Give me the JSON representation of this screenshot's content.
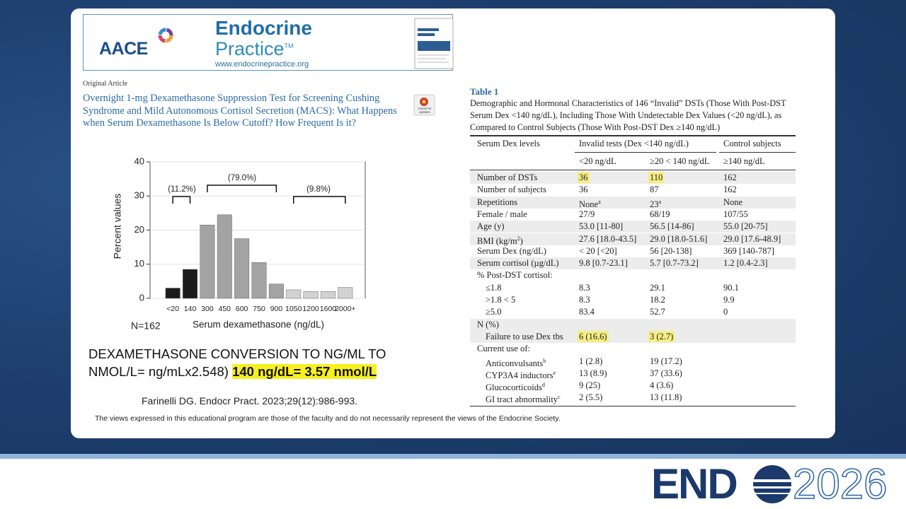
{
  "header": {
    "brand": "AACE",
    "journal_line1": "Endocrine",
    "journal_line2": "Practice",
    "trademark": "TM",
    "url": "www.endocrinepractice.org"
  },
  "article": {
    "kind": "Original Article",
    "title": "Overnight 1-mg Dexamethasone Suppression Test for Screening Cushing Syndrome and Mild Autonomous Cortisol Secretion (MACS): What Happens when Serum Dexamethasone Is Below Cutoff? How Frequent Is it?",
    "badge": "Check for updates"
  },
  "chart_data": {
    "type": "bar",
    "categories": [
      "<20",
      "140",
      "300",
      "450",
      "600",
      "750",
      "900",
      "1050",
      "1200",
      "1600",
      "2000+"
    ],
    "values": [
      3,
      8.5,
      21.5,
      24.5,
      17.5,
      10.5,
      4.2,
      2.5,
      2,
      2,
      3.2
    ],
    "colors": [
      "#1c1c1c",
      "#1c1c1c",
      "#a3a3a3",
      "#a3a3a3",
      "#a3a3a3",
      "#a3a3a3",
      "#a3a3a3",
      "#d2d2d2",
      "#d2d2d2",
      "#d2d2d2",
      "#d2d2d2"
    ],
    "ylim": [
      0,
      40
    ],
    "yticks": [
      0,
      10,
      20,
      30,
      40
    ],
    "grid": true,
    "y_label": "Percent values",
    "x_label": "Serum dexamethasone (ng/dL)",
    "annotations": [
      "(11.2%)",
      "(79.0%)",
      "(9.8%)",
      "N=162"
    ]
  },
  "conversion": {
    "text": "DEXAMETHASONE CONVERSION TO NG/ML TO NMOL/L= ng/mLx2.548)",
    "highlight": "140 ng/dL= 3.57 nmol/L"
  },
  "citation": "Farinelli DG. Endocr Pract. 2023;29(12):986-993.",
  "disclaimer": "The views expressed in this educational program are those of the faculty and do not necessarily represent the views of the Endocrine Society.",
  "table": {
    "caption": "Table 1",
    "title": "Demographic and Hormonal Characteristics of 146 “Invalid” DSTs (Those With Post-DST Serum Dex <140 ng/dL), Including Those With Undetectable Dex Values (<20 ng/dL), as Compared to Control Subjects (Those With Post-DST Dex ≥140 ng/dL)",
    "header": [
      "Serum Dex levels",
      "Invalid tests (Dex <140 ng/dL)",
      "Control subjects"
    ],
    "subheader": [
      "<20 ng/dL",
      "≥20 < 140 ng/dL",
      "≥140 ng/dL"
    ],
    "rows": [
      {
        "cells": [
          "Number of DSTs",
          {
            "text": "36",
            "highlight": true
          },
          {
            "text": "110",
            "highlight": true
          },
          "162"
        ],
        "shaded": true
      },
      {
        "cells": [
          "Number of subjects",
          "36",
          "87",
          "162"
        ],
        "shaded": false
      },
      {
        "cells": [
          "Repetitions",
          {
            "text": "None",
            "sup": "a"
          },
          {
            "text": "23",
            "sup": "a"
          },
          "None"
        ],
        "shaded": true
      },
      {
        "cells": [
          "Female / male",
          "27/9",
          "68/19",
          "107/55"
        ],
        "shaded": false
      },
      {
        "cells": [
          "Age (y)",
          "53.0 [11-80]",
          "56.5 [14-86]",
          "55.0 [20-75]"
        ],
        "shaded": true
      },
      {
        "cells": [
          {
            "text": "BMI (kg/m",
            "sup": "2",
            "after": ")"
          },
          "27.6 [18.0-43.5]",
          "29.0 [18.0-51.6]",
          "29.0 [17.6-48.9]"
        ],
        "shaded": true
      },
      {
        "cells": [
          "Serum Dex (ng/dL)",
          "< 20 [<20]",
          "56 [20-138]",
          "369 [140-787]"
        ],
        "shaded": false
      },
      {
        "cells": [
          "Serum cortisol (µg/dL)",
          "9.8 [0.7-23.1]",
          "5.7 [0.7-73.2]",
          "1.2 [0.4-2.3]"
        ],
        "shaded": true
      },
      {
        "cells": [
          "% Post-DST cortisol:"
        ],
        "shaded": false
      },
      {
        "cells": [
          "≤1.8",
          "8.3",
          "29.1",
          "90.1"
        ],
        "shaded": false,
        "indent": true
      },
      {
        "cells": [
          ">1.8 < 5",
          "8.3",
          "18.2",
          "9.9"
        ],
        "shaded": false,
        "indent": true
      },
      {
        "cells": [
          "≥5.0",
          "83.4",
          "52.7",
          "0"
        ],
        "shaded": false,
        "indent": true
      },
      {
        "cells": [
          "N (%)"
        ],
        "shaded": true
      },
      {
        "cells": [
          "Failure to use Dex tbs",
          {
            "text": "6 (16.6)",
            "highlight": true
          },
          {
            "text": "3 (2.7)",
            "highlight": true
          }
        ],
        "shaded": true,
        "indent": true
      },
      {
        "cells": [
          "Current use of:"
        ],
        "shaded": false
      },
      {
        "cells": [
          {
            "text": "Anticonvulsants",
            "sup": "b"
          },
          "1 (2.8)",
          "19 (17.2)"
        ],
        "shaded": false,
        "indent": true
      },
      {
        "cells": [
          {
            "text": "CYP3A4 inductors",
            "sup": "e"
          },
          "13 (8.9)",
          "37 (33.6)"
        ],
        "shaded": false,
        "indent": true
      },
      {
        "cells": [
          {
            "text": "Glucocorticoids",
            "sup": "d"
          },
          "9 (25)",
          "4 (3.6)"
        ],
        "shaded": false,
        "indent": true
      },
      {
        "cells": [
          {
            "text": "GI tract abnormality",
            "sup": "c"
          },
          "2 (5.5)",
          "13 (11.8)"
        ],
        "shaded": false,
        "indent": true
      }
    ]
  },
  "footer": {
    "logo_left": "END",
    "logo_right": "2026"
  }
}
